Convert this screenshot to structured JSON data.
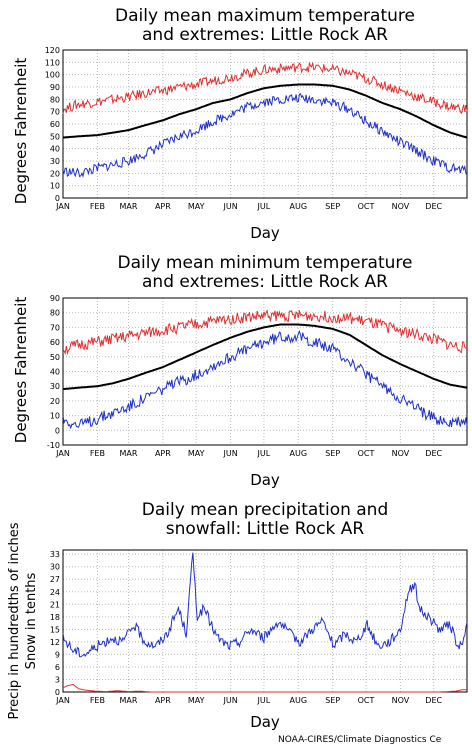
{
  "credit": "NOAA-CIRES/Climate Diagnostics Ce",
  "colors": {
    "mean": "#000000",
    "high": "#e03030",
    "low": "#2030c8",
    "snow": "#e03030",
    "grid": "#bbbbbb"
  },
  "chart_data": [
    {
      "type": "line",
      "title_line1": "Daily mean maximum temperature",
      "title_line2": "and extremes: Little Rock AR",
      "xlabel": "Day",
      "ylabel": "Degrees Fahrenheit",
      "ylim": [
        0,
        120
      ],
      "yticks": [
        0,
        10,
        20,
        30,
        40,
        50,
        60,
        70,
        80,
        90,
        100,
        110,
        120
      ],
      "xticks": [
        "JAN",
        "FEB",
        "MAR",
        "APR",
        "MAY",
        "JUN",
        "JUL",
        "AUG",
        "SEP",
        "OCT",
        "NOV",
        "DEC"
      ],
      "grid": true,
      "series": [
        {
          "role": "mean",
          "color": "#000000",
          "width": 2,
          "x": [
            1,
            15,
            32,
            46,
            60,
            75,
            91,
            106,
            121,
            136,
            152,
            167,
            182,
            197,
            213,
            228,
            244,
            259,
            274,
            289,
            305,
            320,
            335,
            350,
            365
          ],
          "y": [
            49,
            50,
            51,
            53,
            55,
            59,
            63,
            68,
            72,
            77,
            80,
            85,
            89,
            91,
            92,
            92,
            91,
            88,
            83,
            77,
            72,
            66,
            59,
            53,
            49
          ]
        },
        {
          "role": "high",
          "color": "#e03030",
          "width": 1,
          "x": [
            1,
            15,
            32,
            46,
            60,
            75,
            91,
            106,
            121,
            136,
            152,
            167,
            182,
            197,
            213,
            228,
            244,
            259,
            274,
            289,
            305,
            320,
            335,
            350,
            365
          ],
          "y": [
            72,
            76,
            78,
            80,
            82,
            85,
            87,
            90,
            92,
            95,
            98,
            101,
            104,
            105,
            106,
            106,
            104,
            101,
            97,
            92,
            87,
            82,
            78,
            74,
            72
          ]
        },
        {
          "role": "low",
          "color": "#2030c8",
          "width": 1,
          "x": [
            1,
            15,
            32,
            46,
            60,
            75,
            91,
            106,
            121,
            136,
            152,
            167,
            182,
            197,
            213,
            228,
            244,
            259,
            274,
            289,
            305,
            320,
            335,
            350,
            365
          ],
          "y": [
            22,
            20,
            24,
            27,
            30,
            36,
            43,
            50,
            55,
            62,
            68,
            74,
            78,
            80,
            81,
            80,
            77,
            72,
            62,
            54,
            45,
            38,
            30,
            24,
            22
          ]
        }
      ]
    },
    {
      "type": "line",
      "title_line1": "Daily mean minimum temperature",
      "title_line2": "and extremes: Little Rock AR",
      "xlabel": "Day",
      "ylabel": "Degrees Fahrenheit",
      "ylim": [
        -10,
        90
      ],
      "yticks": [
        -10,
        0,
        10,
        20,
        30,
        40,
        50,
        60,
        70,
        80,
        90
      ],
      "xticks": [
        "JAN",
        "FEB",
        "MAR",
        "APR",
        "MAY",
        "JUN",
        "JUL",
        "AUG",
        "SEP",
        "OCT",
        "NOV",
        "DEC"
      ],
      "grid": true,
      "series": [
        {
          "role": "mean",
          "color": "#000000",
          "width": 2,
          "x": [
            1,
            15,
            32,
            46,
            60,
            75,
            91,
            106,
            121,
            136,
            152,
            167,
            182,
            197,
            213,
            228,
            244,
            259,
            274,
            289,
            305,
            320,
            335,
            350,
            365
          ],
          "y": [
            28,
            29,
            30,
            32,
            35,
            39,
            43,
            48,
            53,
            58,
            63,
            67,
            70,
            72,
            72,
            71,
            69,
            65,
            58,
            51,
            45,
            40,
            35,
            31,
            29
          ]
        },
        {
          "role": "high",
          "color": "#e03030",
          "width": 1,
          "x": [
            1,
            15,
            32,
            46,
            60,
            75,
            91,
            106,
            121,
            136,
            152,
            167,
            182,
            197,
            213,
            228,
            244,
            259,
            274,
            289,
            305,
            320,
            335,
            350,
            365
          ],
          "y": [
            55,
            58,
            60,
            62,
            64,
            66,
            68,
            70,
            72,
            74,
            76,
            77,
            78,
            78,
            78,
            78,
            77,
            76,
            74,
            71,
            68,
            65,
            62,
            58,
            56
          ]
        },
        {
          "role": "low",
          "color": "#2030c8",
          "width": 1,
          "x": [
            1,
            15,
            32,
            46,
            60,
            75,
            91,
            106,
            121,
            136,
            152,
            167,
            182,
            197,
            213,
            228,
            244,
            259,
            274,
            289,
            305,
            320,
            335,
            350,
            365
          ],
          "y": [
            8,
            3,
            8,
            12,
            16,
            22,
            28,
            33,
            38,
            44,
            50,
            55,
            60,
            64,
            64,
            60,
            55,
            47,
            38,
            30,
            22,
            15,
            8,
            5,
            6
          ]
        }
      ]
    },
    {
      "type": "line",
      "title_line1": "Daily mean precipitation and",
      "title_line2": "snowfall: Little Rock AR",
      "xlabel": "Day",
      "ylabel_line1": "Precip in hundredths of inches",
      "ylabel_line2": "Snow in tenths",
      "ylim": [
        0,
        34
      ],
      "yticks": [
        0,
        3,
        6,
        9,
        12,
        15,
        18,
        21,
        24,
        27,
        30,
        33
      ],
      "xticks": [
        "JAN",
        "FEB",
        "MAR",
        "APR",
        "MAY",
        "JUN",
        "JUL",
        "AUG",
        "SEP",
        "OCT",
        "NOV",
        "DEC"
      ],
      "grid": true,
      "series": [
        {
          "role": "precip",
          "color": "#2030c8",
          "width": 1,
          "x": [
            1,
            10,
            20,
            32,
            45,
            55,
            65,
            75,
            85,
            95,
            105,
            112,
            118,
            122,
            128,
            140,
            150,
            160,
            170,
            182,
            195,
            205,
            215,
            225,
            235,
            245,
            255,
            265,
            275,
            285,
            295,
            305,
            312,
            318,
            322,
            330,
            340,
            350,
            358,
            365
          ],
          "y": [
            13,
            10,
            9,
            11,
            13,
            12,
            16,
            12,
            11,
            14,
            20,
            14,
            33,
            18,
            20,
            13,
            11,
            12,
            15,
            13,
            17,
            14,
            12,
            15,
            17,
            11,
            14,
            12,
            16,
            11,
            12,
            15,
            24,
            26,
            20,
            18,
            15,
            16,
            10,
            16
          ]
        },
        {
          "role": "snow",
          "color": "#e03030",
          "width": 1,
          "x": [
            1,
            5,
            10,
            15,
            20,
            30,
            40,
            50,
            55,
            60,
            70,
            80,
            100,
            150,
            200,
            250,
            300,
            340,
            355,
            360,
            365
          ],
          "y": [
            1,
            1.5,
            1.8,
            0.8,
            0.5,
            0.2,
            0.1,
            0.3,
            0.2,
            0.1,
            0.2,
            0,
            0,
            0,
            0,
            0,
            0,
            0,
            0.2,
            0.5,
            0.6
          ]
        }
      ]
    }
  ]
}
